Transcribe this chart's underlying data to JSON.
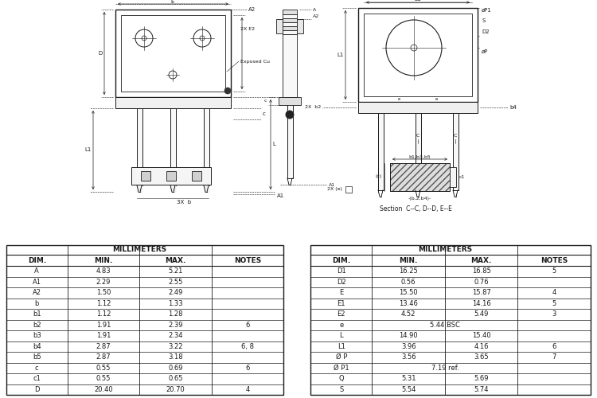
{
  "table1": {
    "headers": [
      "DIM.",
      "MIN.",
      "MAX.",
      "NOTES"
    ],
    "rows": [
      [
        "A",
        "4.83",
        "5.21",
        ""
      ],
      [
        "A1",
        "2.29",
        "2.55",
        ""
      ],
      [
        "A2",
        "1.50",
        "2.49",
        ""
      ],
      [
        "b",
        "1.12",
        "1.33",
        ""
      ],
      [
        "b1",
        "1.12",
        "1.28",
        ""
      ],
      [
        "b2",
        "1.91",
        "2.39",
        "6"
      ],
      [
        "b3",
        "1.91",
        "2.34",
        ""
      ],
      [
        "b4",
        "2.87",
        "3.22",
        "6, 8"
      ],
      [
        "b5",
        "2.87",
        "3.18",
        ""
      ],
      [
        "c",
        "0.55",
        "0.69",
        "6"
      ],
      [
        "c1",
        "0.55",
        "0.65",
        ""
      ],
      [
        "D",
        "20.40",
        "20.70",
        "4"
      ]
    ],
    "millimeters_header": "MILLIMETERS"
  },
  "table2": {
    "headers": [
      "DIM.",
      "MIN.",
      "MAX.",
      "NOTES"
    ],
    "rows": [
      [
        "D1",
        "16.25",
        "16.85",
        "5"
      ],
      [
        "D2",
        "0.56",
        "0.76",
        ""
      ],
      [
        "E",
        "15.50",
        "15.87",
        "4"
      ],
      [
        "E1",
        "13.46",
        "14.16",
        "5"
      ],
      [
        "E2",
        "4.52",
        "5.49",
        "3"
      ],
      [
        "e",
        "5.44 BSC",
        "",
        ""
      ],
      [
        "L",
        "14.90",
        "15.40",
        ""
      ],
      [
        "L1",
        "3.96",
        "4.16",
        "6"
      ],
      [
        "Ø P",
        "3.56",
        "3.65",
        "7"
      ],
      [
        "Ø P1",
        "7.19 ref.",
        "",
        ""
      ],
      [
        "Q",
        "5.31",
        "5.69",
        ""
      ],
      [
        "S",
        "5.54",
        "5.74",
        ""
      ]
    ],
    "millimeters_header": "MILLIMETERS"
  },
  "bg_color": "#ffffff"
}
